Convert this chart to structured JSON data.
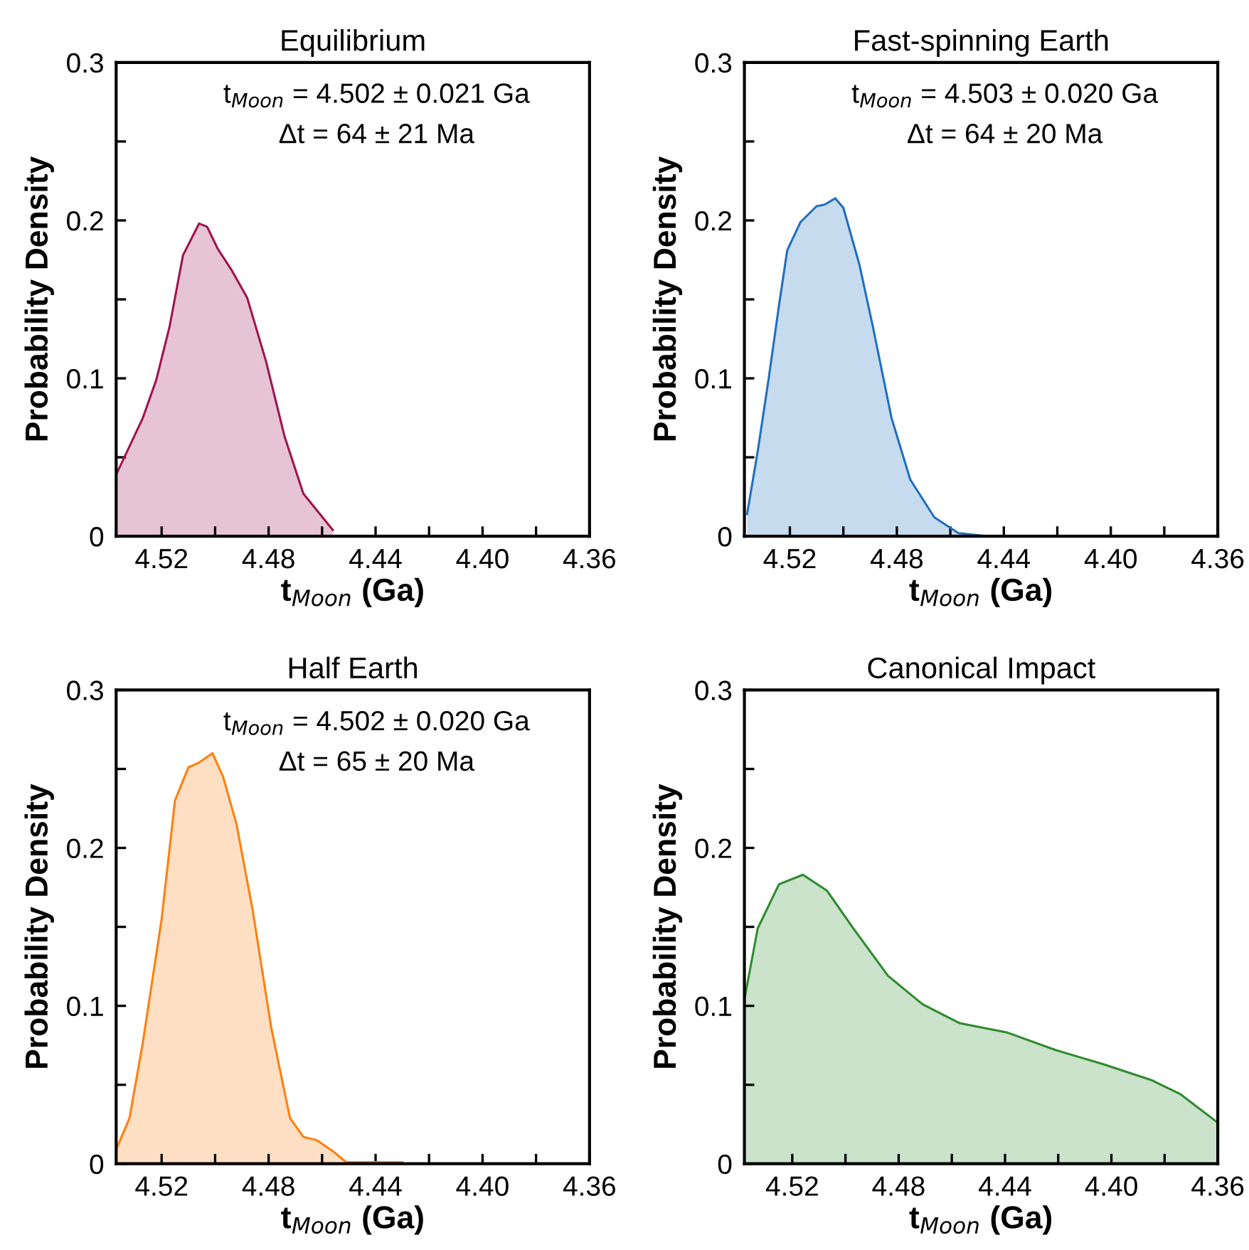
{
  "chart_data": [
    {
      "type": "area",
      "title": "Equilibrium",
      "xlabel": "t$_{Moon}$ (Ga)",
      "ylabel": "Probability Density",
      "annotations": [
        "t$_{Moon}$ = 4.502 ± 0.021 Ga",
        "Δt = 64 ± 21 Ma"
      ],
      "xlim": [
        4.537,
        4.36
      ],
      "ylim": [
        0,
        0.3
      ],
      "xticks": [
        4.52,
        {
          "value": 4.5,
          "label": null
        },
        4.48,
        {
          "value": 4.46,
          "label": null
        },
        4.44,
        {
          "value": 4.42,
          "label": null
        },
        {
          "value": 4.4,
          "label": "4.40"
        },
        {
          "value": 4.38,
          "label": null
        },
        4.36
      ],
      "yticks": [
        0,
        {
          "value": 0.05,
          "label": null
        },
        0.1,
        {
          "value": 0.15,
          "label": null
        },
        0.2,
        {
          "value": 0.25,
          "label": null
        },
        0.3
      ],
      "grid": false,
      "legend": false,
      "series": [
        {
          "color": "#a0134e",
          "x": [
            4.537,
            4.527,
            4.522,
            4.517,
            4.512,
            4.506,
            4.503,
            4.499,
            4.494,
            4.488,
            4.481,
            4.474,
            4.467,
            4.456
          ],
          "values": [
            0.039,
            0.075,
            0.099,
            0.133,
            0.178,
            0.198,
            0.196,
            0.182,
            0.169,
            0.151,
            0.111,
            0.063,
            0.027,
            0.004
          ]
        }
      ]
    },
    {
      "type": "area",
      "title": "Fast-spinning Earth",
      "xlabel": "t$_{Moon}$ (Ga)",
      "ylabel": "Probability Density",
      "annotations": [
        "t$_{Moon}$ = 4.503 ± 0.020 Ga",
        "Δt = 64 ± 20 Ma"
      ],
      "xlim": [
        4.537,
        4.36
      ],
      "ylim": [
        0,
        0.3
      ],
      "xticks": [
        4.52,
        {
          "value": 4.5,
          "label": null
        },
        4.48,
        {
          "value": 4.46,
          "label": null
        },
        4.44,
        {
          "value": 4.42,
          "label": null
        },
        {
          "value": 4.4,
          "label": "4.40"
        },
        {
          "value": 4.38,
          "label": null
        },
        4.36
      ],
      "yticks": [
        0,
        {
          "value": 0.05,
          "label": null
        },
        0.1,
        {
          "value": 0.15,
          "label": null
        },
        0.2,
        {
          "value": 0.25,
          "label": null
        },
        0.3
      ],
      "grid": false,
      "legend": false,
      "series": [
        {
          "color": "#1f6fbf",
          "x": [
            4.536,
            4.532,
            4.528,
            4.524,
            4.521,
            4.516,
            4.51,
            4.507,
            4.503,
            4.5,
            4.494,
            4.489,
            4.482,
            4.475,
            4.466,
            4.457,
            4.446
          ],
          "values": [
            0.014,
            0.054,
            0.099,
            0.147,
            0.181,
            0.199,
            0.209,
            0.21,
            0.214,
            0.208,
            0.172,
            0.133,
            0.075,
            0.036,
            0.012,
            0.002,
            0
          ]
        }
      ]
    },
    {
      "type": "area",
      "title": "Half Earth",
      "xlabel": "t$_{Moon}$ (Ga)",
      "ylabel": "Probability Density",
      "annotations": [
        "t$_{Moon}$ = 4.502 ± 0.020 Ga",
        "Δt = 65 ± 20 Ma"
      ],
      "xlim": [
        4.537,
        4.36
      ],
      "ylim": [
        0,
        0.3
      ],
      "xticks": [
        4.52,
        {
          "value": 4.5,
          "label": null
        },
        4.48,
        {
          "value": 4.46,
          "label": null
        },
        4.44,
        {
          "value": 4.42,
          "label": null
        },
        {
          "value": 4.4,
          "label": "4.40"
        },
        {
          "value": 4.38,
          "label": null
        },
        4.36
      ],
      "yticks": [
        0,
        {
          "value": 0.05,
          "label": null
        },
        0.1,
        {
          "value": 0.15,
          "label": null
        },
        0.2,
        {
          "value": 0.25,
          "label": null
        },
        0.3
      ],
      "grid": false,
      "legend": false,
      "series": [
        {
          "color": "#ff7f0e",
          "x": [
            4.537,
            4.532,
            4.527,
            4.52,
            4.515,
            4.51,
            4.506,
            4.501,
            4.497,
            4.492,
            4.486,
            4.479,
            4.472,
            4.467,
            4.462,
            4.456,
            4.451,
            4.43
          ],
          "values": [
            0.009,
            0.029,
            0.077,
            0.155,
            0.23,
            0.251,
            0.254,
            0.26,
            0.245,
            0.215,
            0.161,
            0.086,
            0.029,
            0.017,
            0.015,
            0.008,
            0.001,
            0.001
          ]
        }
      ]
    },
    {
      "type": "area",
      "title": "Canonical Impact",
      "xlabel": "t$_{Moon}$ (Ga)",
      "ylabel": "Probability Density",
      "xlim": [
        4.538,
        4.36
      ],
      "ylim": [
        0,
        0.3
      ],
      "xticks": [
        4.52,
        {
          "value": 4.5,
          "label": null
        },
        4.48,
        {
          "value": 4.46,
          "label": null
        },
        4.44,
        {
          "value": 4.42,
          "label": null
        },
        {
          "value": 4.4,
          "label": "4.40"
        },
        {
          "value": 4.38,
          "label": null
        },
        4.36
      ],
      "yticks": [
        0,
        {
          "value": 0.05,
          "label": null
        },
        0.1,
        {
          "value": 0.15,
          "label": null
        },
        0.2,
        {
          "value": 0.25,
          "label": null
        },
        0.3
      ],
      "grid": false,
      "legend": false,
      "series": [
        {
          "color": "#2e8b2e",
          "x": [
            4.538,
            4.533,
            4.525,
            4.516,
            4.507,
            4.497,
            4.484,
            4.471,
            4.457,
            4.439,
            4.421,
            4.403,
            4.385,
            4.374,
            4.36
          ],
          "values": [
            0.104,
            0.149,
            0.177,
            0.183,
            0.173,
            0.149,
            0.119,
            0.101,
            0.089,
            0.083,
            0.072,
            0.063,
            0.053,
            0.044,
            0.026
          ]
        }
      ]
    }
  ]
}
